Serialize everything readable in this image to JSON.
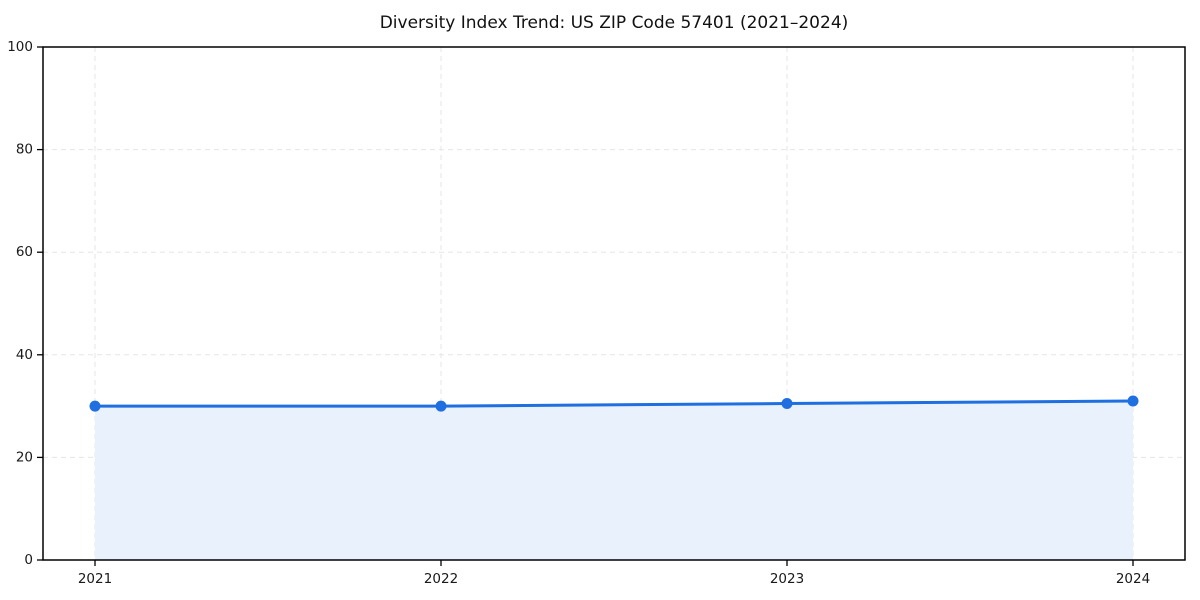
{
  "page": {
    "background": "#ffffff"
  },
  "chart_data": {
    "type": "area",
    "title": "Diversity Index Trend: US ZIP Code 57401 (2021–2024)",
    "x": [
      "2021",
      "2022",
      "2023",
      "2024"
    ],
    "series": [
      {
        "name": "Diversity Index",
        "values": [
          30.0,
          30.0,
          30.5,
          31.0
        ]
      }
    ],
    "xlabel": "",
    "ylabel": "",
    "ylim": [
      0,
      100
    ],
    "yticks": [
      0,
      20,
      40,
      60,
      80,
      100
    ],
    "grid": "dashed-both-axes",
    "legend_position": "none",
    "colors": {
      "line": "#1f6fe0",
      "marker": "#1f6fe0",
      "fill": "#e8f1fc",
      "grid": "#e6e6e6",
      "axis": "#000000",
      "text": "#1a1a1a",
      "background": "#ffffff"
    }
  }
}
